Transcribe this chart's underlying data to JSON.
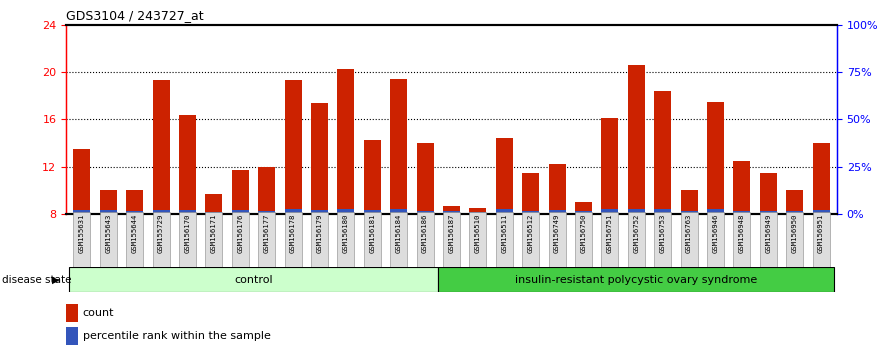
{
  "title": "GDS3104 / 243727_at",
  "samples": [
    "GSM155631",
    "GSM155643",
    "GSM155644",
    "GSM155729",
    "GSM156170",
    "GSM156171",
    "GSM156176",
    "GSM156177",
    "GSM156178",
    "GSM156179",
    "GSM156180",
    "GSM156181",
    "GSM156184",
    "GSM156186",
    "GSM156187",
    "GSM156510",
    "GSM156511",
    "GSM156512",
    "GSM156749",
    "GSM156750",
    "GSM156751",
    "GSM156752",
    "GSM156753",
    "GSM156763",
    "GSM156946",
    "GSM156948",
    "GSM156949",
    "GSM156950",
    "GSM156951"
  ],
  "count_values": [
    13.5,
    10.0,
    10.0,
    19.3,
    16.4,
    9.7,
    11.7,
    12.0,
    19.3,
    17.4,
    20.3,
    14.3,
    19.4,
    14.0,
    8.7,
    8.5,
    14.4,
    11.5,
    12.2,
    9.0,
    16.1,
    20.6,
    18.4,
    10.0,
    17.5,
    12.5,
    11.5,
    10.0,
    14.0
  ],
  "percentile_values": [
    0.35,
    0.35,
    0.25,
    0.35,
    0.35,
    0.2,
    0.35,
    0.3,
    0.4,
    0.35,
    0.45,
    0.35,
    0.4,
    0.3,
    0.25,
    0.2,
    0.4,
    0.3,
    0.35,
    0.3,
    0.4,
    0.4,
    0.4,
    0.25,
    0.4,
    0.3,
    0.25,
    0.3,
    0.35
  ],
  "control_count": 14,
  "disease_count": 15,
  "ymin": 8,
  "ymax": 24,
  "yticks_left": [
    8,
    12,
    16,
    20,
    24
  ],
  "yticks_right": [
    0,
    25,
    50,
    75,
    100
  ],
  "ytick_labels_right": [
    "0%",
    "25%",
    "50%",
    "75%",
    "100%"
  ],
  "bar_color": "#cc2200",
  "blue_color": "#3355bb",
  "control_bg": "#ccffcc",
  "disease_bg": "#44cc44",
  "label_bg": "#dddddd",
  "bar_width": 0.65,
  "legend_count": "count",
  "legend_percentile": "percentile rank within the sample",
  "disease_state_label": "disease state",
  "control_label": "control",
  "disease_label": "insulin-resistant polycystic ovary syndrome"
}
